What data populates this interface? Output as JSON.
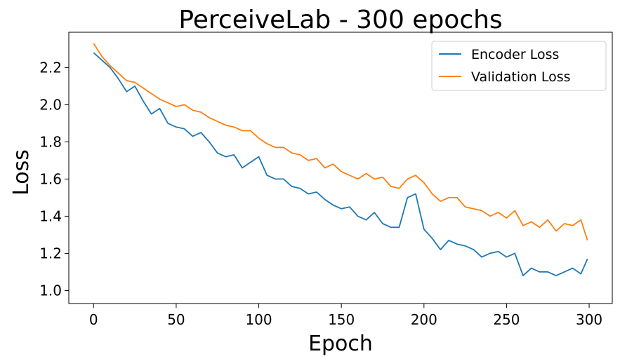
{
  "chart_data": {
    "type": "line",
    "title": "PerceiveLab - 300 epochs",
    "xlabel": "Epoch",
    "ylabel": "Loss",
    "xlim": [
      -15,
      314
    ],
    "ylim": [
      0.93,
      2.39
    ],
    "xticks": [
      0,
      50,
      100,
      150,
      200,
      250,
      300
    ],
    "yticks": [
      1.0,
      1.2,
      1.4,
      1.6,
      1.8,
      2.0,
      2.2
    ],
    "ytick_labels": [
      "1.0",
      "1.2",
      "1.4",
      "1.6",
      "1.8",
      "2.0",
      "2.2"
    ],
    "grid": false,
    "legend": "top-right",
    "series": [
      {
        "name": "Encoder Loss",
        "color": "#1f77b4",
        "x": [
          0,
          5,
          10,
          15,
          20,
          25,
          30,
          35,
          40,
          45,
          50,
          55,
          60,
          65,
          70,
          75,
          80,
          85,
          90,
          95,
          100,
          105,
          110,
          115,
          120,
          125,
          130,
          135,
          140,
          145,
          150,
          155,
          160,
          165,
          170,
          175,
          180,
          185,
          190,
          195,
          200,
          205,
          210,
          215,
          220,
          225,
          230,
          235,
          240,
          245,
          250,
          255,
          260,
          265,
          270,
          275,
          280,
          285,
          290,
          295,
          299
        ],
        "values": [
          2.28,
          2.24,
          2.2,
          2.14,
          2.07,
          2.1,
          2.02,
          1.95,
          1.98,
          1.9,
          1.88,
          1.87,
          1.83,
          1.85,
          1.8,
          1.74,
          1.72,
          1.73,
          1.66,
          1.69,
          1.72,
          1.62,
          1.6,
          1.6,
          1.56,
          1.55,
          1.52,
          1.53,
          1.49,
          1.46,
          1.44,
          1.45,
          1.4,
          1.38,
          1.42,
          1.36,
          1.34,
          1.34,
          1.5,
          1.52,
          1.33,
          1.28,
          1.22,
          1.27,
          1.25,
          1.24,
          1.22,
          1.18,
          1.2,
          1.21,
          1.18,
          1.2,
          1.08,
          1.12,
          1.1,
          1.1,
          1.08,
          1.1,
          1.12,
          1.09,
          1.17
        ]
      },
      {
        "name": "Validation Loss",
        "color": "#ff7f0e",
        "x": [
          0,
          5,
          10,
          15,
          20,
          25,
          30,
          35,
          40,
          45,
          50,
          55,
          60,
          65,
          70,
          75,
          80,
          85,
          90,
          95,
          100,
          105,
          110,
          115,
          120,
          125,
          130,
          135,
          140,
          145,
          150,
          155,
          160,
          165,
          170,
          175,
          180,
          185,
          190,
          195,
          200,
          205,
          210,
          215,
          220,
          225,
          230,
          235,
          240,
          245,
          250,
          255,
          260,
          265,
          270,
          275,
          280,
          285,
          290,
          295,
          299
        ],
        "values": [
          2.33,
          2.26,
          2.21,
          2.17,
          2.13,
          2.12,
          2.09,
          2.06,
          2.03,
          2.01,
          1.99,
          2.0,
          1.97,
          1.96,
          1.93,
          1.91,
          1.89,
          1.88,
          1.86,
          1.86,
          1.82,
          1.79,
          1.77,
          1.77,
          1.74,
          1.73,
          1.7,
          1.71,
          1.66,
          1.68,
          1.64,
          1.62,
          1.6,
          1.63,
          1.6,
          1.61,
          1.56,
          1.55,
          1.6,
          1.62,
          1.58,
          1.52,
          1.48,
          1.5,
          1.5,
          1.45,
          1.44,
          1.43,
          1.4,
          1.42,
          1.39,
          1.43,
          1.35,
          1.37,
          1.34,
          1.38,
          1.32,
          1.36,
          1.35,
          1.38,
          1.27
        ]
      }
    ]
  }
}
